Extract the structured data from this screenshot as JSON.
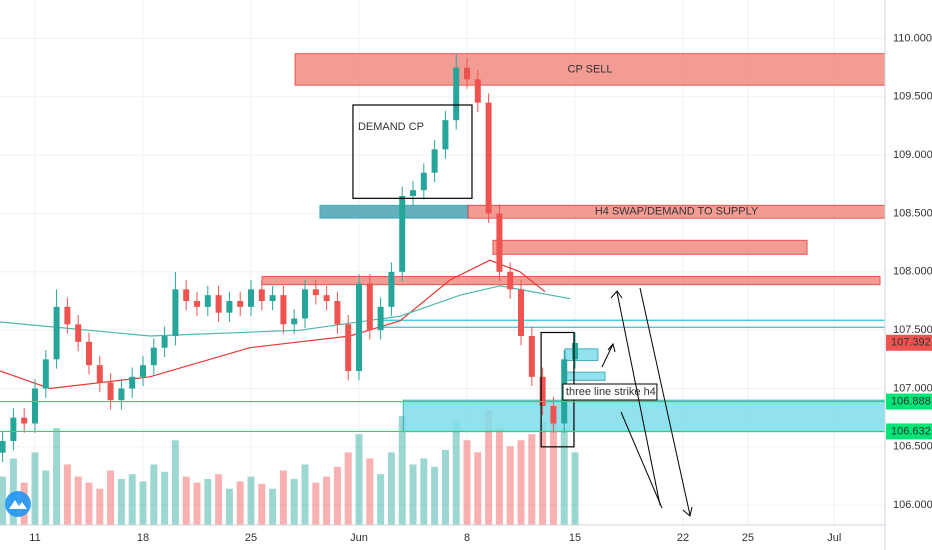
{
  "chart_data": {
    "type": "candlestick",
    "xlim": [
      -1.62,
      39.35
    ],
    "ylim": [
      105.83,
      110.33
    ],
    "xticks": [
      {
        "value": 0,
        "label": "11"
      },
      {
        "value": 5,
        "label": "18"
      },
      {
        "value": 10,
        "label": "25"
      },
      {
        "value": 15,
        "label": "Jun"
      },
      {
        "value": 20,
        "label": "8"
      },
      {
        "value": 25,
        "label": "15"
      },
      {
        "value": 30,
        "label": "22"
      },
      {
        "value": 33,
        "label": "25"
      },
      {
        "value": 37,
        "label": "Jul"
      }
    ],
    "yticks": [
      {
        "value": 110,
        "label": "110.000"
      },
      {
        "value": 109.5,
        "label": "109.500"
      },
      {
        "value": 109,
        "label": "109.000"
      },
      {
        "value": 108.5,
        "label": "108.500"
      },
      {
        "value": 108,
        "label": "108.000"
      },
      {
        "value": 107.5,
        "label": "107.500"
      },
      {
        "value": 107,
        "label": "107.000"
      },
      {
        "value": 106.5,
        "label": "106.500"
      },
      {
        "value": 106,
        "label": "106.000"
      }
    ],
    "grid": true,
    "up_color": "#26a69a",
    "down_color": "#ef5350",
    "candles": {
      "x": [
        -1.5,
        -1,
        -0.5,
        0,
        0.5,
        1,
        1.5,
        2,
        2.5,
        3,
        3.5,
        4,
        4.5,
        5,
        5.5,
        6,
        6.5,
        7,
        7.5,
        8,
        8.5,
        9,
        9.5,
        10,
        10.5,
        11,
        11.5,
        12,
        12.5,
        13,
        13.5,
        14,
        14.5,
        15,
        15.5,
        16,
        16.5,
        17,
        17.5,
        18,
        18.5,
        19,
        19.5,
        20,
        20.5,
        21,
        21.5,
        22,
        22.5,
        23,
        23.5,
        24,
        24.5,
        25
      ],
      "open": [
        106.45,
        106.55,
        106.75,
        106.7,
        107.0,
        107.25,
        107.7,
        107.55,
        107.4,
        107.2,
        107.05,
        106.9,
        107.0,
        107.1,
        107.2,
        107.35,
        107.45,
        107.85,
        107.75,
        107.7,
        107.8,
        107.65,
        107.75,
        107.7,
        107.85,
        107.75,
        107.8,
        107.55,
        107.6,
        107.85,
        107.8,
        107.75,
        107.55,
        107.15,
        107.9,
        107.5,
        107.7,
        108.0,
        108.65,
        108.7,
        108.85,
        109.05,
        109.3,
        109.75,
        109.65,
        109.45,
        108.5,
        108.0,
        107.85,
        107.45,
        107.1,
        106.85,
        106.7,
        107.25
      ],
      "high": [
        106.63,
        106.83,
        106.83,
        107.08,
        107.33,
        107.85,
        107.78,
        107.63,
        107.48,
        107.28,
        107.13,
        107.08,
        107.18,
        107.28,
        107.43,
        107.53,
        108.0,
        107.93,
        107.83,
        107.88,
        107.88,
        107.83,
        107.83,
        107.93,
        107.93,
        107.88,
        107.88,
        107.68,
        107.93,
        107.93,
        107.88,
        107.83,
        107.63,
        107.98,
        107.98,
        107.78,
        108.08,
        108.73,
        108.78,
        108.93,
        109.13,
        109.38,
        109.87,
        109.83,
        109.73,
        109.53,
        108.58,
        108.08,
        107.93,
        107.53,
        107.18,
        106.93,
        107.33,
        107.48
      ],
      "low": [
        106.37,
        106.47,
        106.62,
        106.62,
        106.92,
        107.17,
        107.47,
        107.32,
        107.12,
        106.97,
        106.82,
        106.82,
        106.92,
        107.02,
        107.12,
        107.27,
        107.37,
        107.67,
        107.62,
        107.62,
        107.57,
        107.57,
        107.62,
        107.62,
        107.67,
        107.67,
        107.47,
        107.47,
        107.52,
        107.72,
        107.67,
        107.47,
        107.07,
        107.07,
        107.42,
        107.42,
        107.62,
        107.92,
        108.57,
        108.62,
        108.77,
        108.97,
        109.22,
        109.57,
        109.37,
        108.42,
        107.92,
        107.77,
        107.37,
        107.02,
        106.77,
        106.62,
        106.62,
        107.17
      ],
      "close": [
        106.55,
        106.75,
        106.7,
        107.0,
        107.25,
        107.7,
        107.55,
        107.4,
        107.2,
        107.05,
        106.9,
        107.0,
        107.1,
        107.2,
        107.35,
        107.45,
        107.85,
        107.75,
        107.7,
        107.8,
        107.65,
        107.75,
        107.7,
        107.85,
        107.75,
        107.8,
        107.55,
        107.6,
        107.85,
        107.8,
        107.75,
        107.55,
        107.15,
        107.9,
        107.5,
        107.7,
        108.0,
        108.65,
        108.7,
        108.85,
        109.05,
        109.3,
        109.75,
        109.65,
        109.45,
        108.5,
        108.0,
        107.85,
        107.45,
        107.1,
        106.85,
        106.7,
        107.25,
        107.39
      ],
      "volume": [
        40,
        55,
        35,
        60,
        45,
        80,
        50,
        40,
        35,
        30,
        45,
        38,
        42,
        36,
        50,
        44,
        70,
        40,
        35,
        38,
        42,
        30,
        36,
        40,
        34,
        30,
        45,
        38,
        50,
        35,
        40,
        48,
        60,
        75,
        55,
        42,
        60,
        90,
        50,
        55,
        48,
        62,
        85,
        70,
        60,
        95,
        80,
        65,
        70,
        75,
        85,
        90,
        80,
        60
      ]
    },
    "series": [
      {
        "color": "#e53935",
        "x": [
          -1.62,
          0.69,
          5.32,
          9.95,
          14.58,
          16.9,
          19.21,
          21.06,
          22.45,
          23.61
        ],
        "values": [
          107.15,
          107.0,
          107.1,
          107.35,
          107.45,
          107.58,
          107.93,
          108.1,
          108.0,
          107.83
        ]
      },
      {
        "color": "#4db6ac",
        "x": [
          -1.62,
          5.32,
          12.27,
          16.9,
          19.68,
          21.53,
          24.77
        ],
        "values": [
          107.57,
          107.45,
          107.5,
          107.62,
          107.8,
          107.88,
          107.77
        ]
      }
    ],
    "zones": [
      {
        "label": "CP SELL",
        "x": [
          12.04,
          39.35
        ],
        "y": [
          109.6,
          109.87
        ],
        "color": "#f28b82"
      },
      {
        "x": [
          13.19,
          20.05
        ],
        "y": [
          108.46,
          108.57
        ],
        "color": "#4aa3b5"
      },
      {
        "label": "H4 SWAP/DEMAND TO SUPPLY",
        "x": [
          20.05,
          39.35
        ],
        "y": [
          108.46,
          108.57
        ],
        "color": "#f28b82"
      },
      {
        "x": [
          21.2,
          35.74
        ],
        "y": [
          108.15,
          108.27
        ],
        "color": "#f28b82"
      },
      {
        "x": [
          10.51,
          39.12
        ],
        "y": [
          107.89,
          107.96
        ],
        "color": "#f28b82"
      },
      {
        "x": [
          17.05,
          39.35
        ],
        "y": [
          106.63,
          106.9
        ],
        "color": "#80deea"
      },
      {
        "x": [
          24.54,
          26.06
        ],
        "y": [
          107.24,
          107.34
        ],
        "color": "#80deea"
      },
      {
        "x": [
          24.54,
          26.39
        ],
        "y": [
          107.07,
          107.14
        ],
        "color": "#80deea"
      }
    ],
    "cyan_lines": [
      107.585,
      107.525
    ],
    "boxes": [
      {
        "label": "DEMAND CP",
        "x": [
          14.72,
          20.23
        ],
        "y": [
          108.63,
          109.43
        ]
      },
      {
        "x": [
          23.43,
          24.95
        ],
        "y": [
          106.5,
          107.48
        ]
      }
    ],
    "annotation": {
      "text": "three line strike h4",
      "x": 24.44,
      "y": 106.97
    },
    "levels": [
      {
        "value": 106.888,
        "label": "106.888",
        "color": "#00e676"
      },
      {
        "value": 106.632,
        "label": "106.632",
        "color": "#00e676"
      }
    ],
    "last_price": {
      "value": 107.392,
      "label": "107.392",
      "color": "#ef5350"
    }
  }
}
